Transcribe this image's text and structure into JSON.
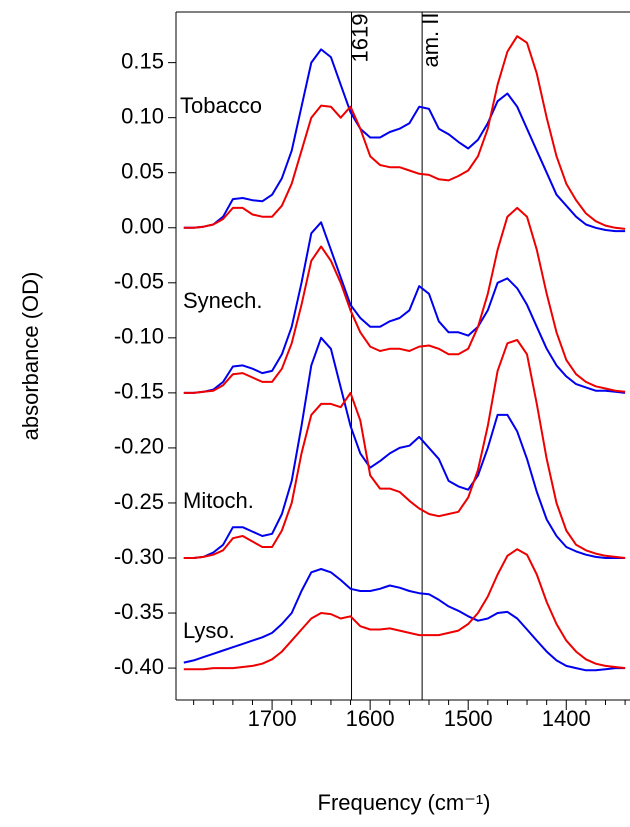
{
  "chart_data": {
    "type": "line",
    "xlabel": "Frequency (cm⁻¹)",
    "ylabel": "absorbance (OD)",
    "xlim": [
      1798,
      1335
    ],
    "ylim": [
      -0.429,
      0.196
    ],
    "xticks": [
      1700,
      1600,
      1500,
      1400
    ],
    "x_minor_ticks": [
      1780,
      1760,
      1740,
      1720,
      1680,
      1660,
      1640,
      1620,
      1580,
      1560,
      1540,
      1520,
      1480,
      1460,
      1440,
      1420,
      1380,
      1360,
      1340
    ],
    "yticks": [
      {
        "value": 0.15,
        "label": "0.15"
      },
      {
        "value": 0.1,
        "label": "0.10"
      },
      {
        "value": 0.05,
        "label": "0.05"
      },
      {
        "value": 0,
        "label": "0.00"
      },
      {
        "value": -0.05,
        "label": "-0.05"
      },
      {
        "value": -0.1,
        "label": "-0.10"
      },
      {
        "value": -0.15,
        "label": "-0.15"
      },
      {
        "value": -0.2,
        "label": "-0.20"
      },
      {
        "value": -0.25,
        "label": "-0.25"
      },
      {
        "value": -0.3,
        "label": "-0.30"
      },
      {
        "value": -0.35,
        "label": "-0.35"
      },
      {
        "value": -0.4,
        "label": "-0.40"
      }
    ],
    "vlines": [
      1619,
      {
        "value": 1547,
        "label": "am. II"
      }
    ],
    "x": [
      1790,
      1780,
      1770,
      1760,
      1750,
      1740,
      1730,
      1720,
      1710,
      1700,
      1690,
      1680,
      1670,
      1660,
      1650,
      1640,
      1630,
      1620,
      1610,
      1600,
      1590,
      1580,
      1570,
      1560,
      1550,
      1540,
      1530,
      1520,
      1510,
      1500,
      1490,
      1480,
      1470,
      1460,
      1450,
      1440,
      1430,
      1420,
      1410,
      1400,
      1390,
      1380,
      1370,
      1360,
      1350,
      1340
    ],
    "series": [
      {
        "label": "Tobacco",
        "lines": [
          {
            "color": "#0000ee",
            "values": [
              0.0,
              0.0,
              0.001,
              0.003,
              0.01,
              0.026,
              0.027,
              0.025,
              0.024,
              0.03,
              0.045,
              0.07,
              0.11,
              0.15,
              0.162,
              0.155,
              0.13,
              0.105,
              0.09,
              0.082,
              0.082,
              0.087,
              0.09,
              0.095,
              0.11,
              0.108,
              0.09,
              0.085,
              0.078,
              0.072,
              0.08,
              0.095,
              0.115,
              0.122,
              0.11,
              0.09,
              0.07,
              0.05,
              0.03,
              0.02,
              0.01,
              0.003,
              0.0,
              -0.002,
              -0.003,
              -0.003
            ]
          },
          {
            "color": "#ee0000",
            "values": [
              0.0,
              0.0,
              0.001,
              0.003,
              0.008,
              0.018,
              0.018,
              0.012,
              0.01,
              0.01,
              0.02,
              0.04,
              0.07,
              0.1,
              0.111,
              0.11,
              0.1,
              0.11,
              0.09,
              0.065,
              0.057,
              0.055,
              0.055,
              0.052,
              0.049,
              0.048,
              0.044,
              0.043,
              0.047,
              0.052,
              0.065,
              0.09,
              0.13,
              0.16,
              0.174,
              0.168,
              0.14,
              0.1,
              0.065,
              0.04,
              0.025,
              0.013,
              0.006,
              0.002,
              0.0,
              -0.001
            ]
          }
        ]
      },
      {
        "label": "Synech.",
        "lines": [
          {
            "color": "#0000ee",
            "values": [
              -0.15,
              -0.15,
              -0.149,
              -0.147,
              -0.14,
              -0.126,
              -0.125,
              -0.128,
              -0.132,
              -0.13,
              -0.115,
              -0.09,
              -0.05,
              -0.005,
              0.005,
              -0.02,
              -0.045,
              -0.07,
              -0.082,
              -0.09,
              -0.09,
              -0.085,
              -0.082,
              -0.075,
              -0.053,
              -0.06,
              -0.085,
              -0.095,
              -0.095,
              -0.098,
              -0.09,
              -0.075,
              -0.05,
              -0.046,
              -0.055,
              -0.07,
              -0.09,
              -0.11,
              -0.125,
              -0.135,
              -0.142,
              -0.145,
              -0.148,
              -0.148,
              -0.149,
              -0.15
            ]
          },
          {
            "color": "#ee0000",
            "values": [
              -0.15,
              -0.15,
              -0.149,
              -0.148,
              -0.143,
              -0.133,
              -0.132,
              -0.136,
              -0.14,
              -0.14,
              -0.128,
              -0.105,
              -0.07,
              -0.03,
              -0.017,
              -0.03,
              -0.05,
              -0.075,
              -0.095,
              -0.108,
              -0.112,
              -0.11,
              -0.11,
              -0.112,
              -0.108,
              -0.107,
              -0.11,
              -0.115,
              -0.115,
              -0.11,
              -0.09,
              -0.06,
              -0.02,
              0.01,
              0.018,
              0.01,
              -0.02,
              -0.06,
              -0.095,
              -0.12,
              -0.133,
              -0.14,
              -0.144,
              -0.146,
              -0.148,
              -0.149
            ]
          }
        ]
      },
      {
        "label": "Mitoch.",
        "lines": [
          {
            "color": "#0000ee",
            "values": [
              -0.3,
              -0.3,
              -0.299,
              -0.295,
              -0.288,
              -0.272,
              -0.272,
              -0.276,
              -0.28,
              -0.278,
              -0.26,
              -0.23,
              -0.18,
              -0.125,
              -0.1,
              -0.11,
              -0.145,
              -0.18,
              -0.205,
              -0.218,
              -0.212,
              -0.205,
              -0.2,
              -0.198,
              -0.19,
              -0.2,
              -0.21,
              -0.23,
              -0.235,
              -0.238,
              -0.225,
              -0.2,
              -0.17,
              -0.17,
              -0.185,
              -0.21,
              -0.24,
              -0.265,
              -0.28,
              -0.29,
              -0.294,
              -0.297,
              -0.299,
              -0.3,
              -0.3,
              -0.3
            ]
          },
          {
            "color": "#ee0000",
            "values": [
              -0.3,
              -0.3,
              -0.299,
              -0.297,
              -0.293,
              -0.282,
              -0.28,
              -0.285,
              -0.29,
              -0.29,
              -0.275,
              -0.25,
              -0.205,
              -0.17,
              -0.16,
              -0.16,
              -0.163,
              -0.15,
              -0.175,
              -0.225,
              -0.237,
              -0.237,
              -0.24,
              -0.248,
              -0.255,
              -0.26,
              -0.262,
              -0.26,
              -0.258,
              -0.245,
              -0.22,
              -0.18,
              -0.13,
              -0.105,
              -0.102,
              -0.115,
              -0.16,
              -0.21,
              -0.25,
              -0.275,
              -0.288,
              -0.293,
              -0.296,
              -0.298,
              -0.299,
              -0.3
            ]
          }
        ]
      },
      {
        "label": "Lyso.",
        "lines": [
          {
            "color": "#0000ee",
            "values": [
              -0.395,
              -0.393,
              -0.39,
              -0.387,
              -0.384,
              -0.381,
              -0.378,
              -0.375,
              -0.372,
              -0.368,
              -0.36,
              -0.35,
              -0.33,
              -0.313,
              -0.31,
              -0.313,
              -0.32,
              -0.328,
              -0.33,
              -0.33,
              -0.328,
              -0.325,
              -0.327,
              -0.33,
              -0.332,
              -0.333,
              -0.338,
              -0.344,
              -0.348,
              -0.353,
              -0.357,
              -0.355,
              -0.35,
              -0.349,
              -0.355,
              -0.365,
              -0.375,
              -0.385,
              -0.393,
              -0.398,
              -0.4,
              -0.402,
              -0.402,
              -0.401,
              -0.4,
              -0.4
            ]
          },
          {
            "color": "#ee0000",
            "values": [
              -0.401,
              -0.401,
              -0.401,
              -0.4,
              -0.4,
              -0.4,
              -0.399,
              -0.398,
              -0.396,
              -0.392,
              -0.385,
              -0.375,
              -0.365,
              -0.355,
              -0.35,
              -0.351,
              -0.355,
              -0.353,
              -0.362,
              -0.365,
              -0.365,
              -0.364,
              -0.366,
              -0.368,
              -0.37,
              -0.37,
              -0.37,
              -0.368,
              -0.366,
              -0.36,
              -0.35,
              -0.335,
              -0.315,
              -0.298,
              -0.292,
              -0.297,
              -0.315,
              -0.34,
              -0.36,
              -0.375,
              -0.385,
              -0.392,
              -0.396,
              -0.398,
              -0.399,
              -0.4
            ]
          }
        ]
      }
    ]
  }
}
